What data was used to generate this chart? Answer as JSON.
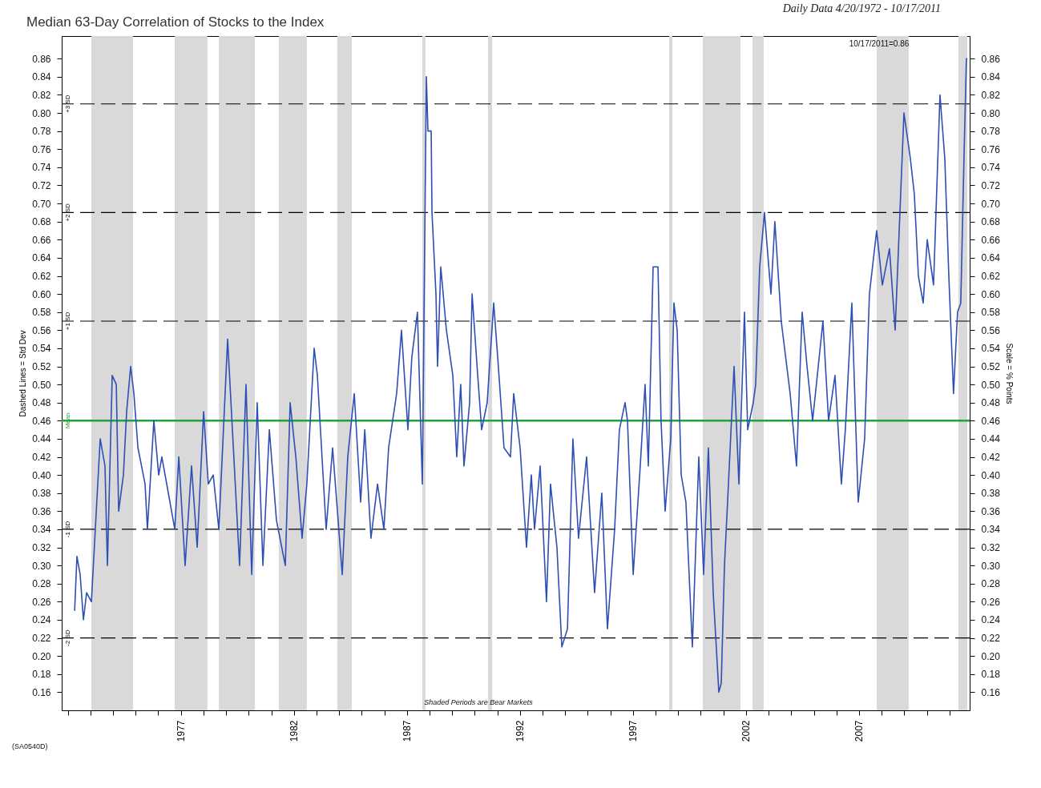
{
  "chart_data": {
    "type": "line",
    "title": "Median 63-Day Correlation of Stocks to the Index",
    "subtitle": "Daily Data 4/20/1972 - 10/17/2011",
    "ylabel": "Dashed Lines = Std Dev",
    "y2label": "Scale = % Points",
    "annotations": [
      "10/17/2011=0.86",
      "Shaded Periods are Bear Markets",
      "(SA0540D)"
    ],
    "x": [
      "1972-04-20",
      "1972-05-27",
      "1972-07-18",
      "1972-09-09",
      "1972-10-30",
      "1973-01-16",
      "1973-03-20",
      "1973-06-07",
      "1973-08-23",
      "1973-10-02",
      "1973-12-18",
      "1974-02-22",
      "1974-04-01",
      "1974-06-17",
      "1974-08-08",
      "1974-10-12",
      "1974-12-03",
      "1975-02-07",
      "1975-06-02",
      "1975-07-10",
      "1975-10-22",
      "1976-01-08",
      "1976-02-28",
      "1976-06-12",
      "1976-09-24",
      "1976-11-28",
      "1977-03-10",
      "1977-06-22",
      "1977-09-21",
      "1978-01-03",
      "1978-03-20",
      "1978-06-07",
      "1978-09-06",
      "1979-01-26",
      "1979-04-13",
      "1979-08-07",
      "1979-11-19",
      "1980-02-19",
      "1980-05-18",
      "1980-08-18",
      "1980-11-30",
      "1981-03-25",
      "1981-08-15",
      "1981-11-01",
      "1982-02-01",
      "1982-05-13",
      "1982-07-29",
      "1982-11-24",
      "1983-01-15",
      "1983-06-06",
      "1983-09-18",
      "1984-02-21",
      "1984-05-20",
      "1984-09-02",
      "1984-12-14",
      "1985-02-19",
      "1985-05-30",
      "1985-09-13",
      "1985-12-25",
      "1986-03-11",
      "1986-07-19",
      "1986-10-05",
      "1987-01-17",
      "1987-03-21",
      "1987-06-20",
      "1987-09-07",
      "1987-11-11",
      "1987-12-07",
      "1988-01-28",
      "1988-02-10",
      "1988-04-14",
      "1988-05-10",
      "1988-07-01",
      "1988-09-30",
      "1989-01-12",
      "1989-03-16",
      "1989-05-19",
      "1989-07-11",
      "1989-10-10",
      "1989-11-19",
      "1990-02-18",
      "1990-04-22",
      "1990-07-21",
      "1990-11-03",
      "1991-01-07",
      "1991-04-19",
      "1991-08-01",
      "1991-09-22",
      "1992-01-04",
      "1992-04-16",
      "1992-07-03",
      "1992-08-24",
      "1992-11-23",
      "1993-03-05",
      "1993-05-09",
      "1993-08-21",
      "1993-11-08",
      "1994-02-07",
      "1994-05-06",
      "1994-08-05",
      "1994-12-13",
      "1995-04-21",
      "1995-08-16",
      "1995-11-15",
      "1996-03-10",
      "1996-05-26",
      "1996-08-26",
      "1996-10-04",
      "1997-01-04",
      "1997-04-28",
      "1997-07-15",
      "1997-09-06",
      "1997-11-22",
      "1998-02-09",
      "1998-03-30",
      "1998-06-04",
      "1998-09-03",
      "1998-10-24",
      "1998-12-16",
      "1999-02-19",
      "1999-05-06",
      "1999-08-18",
      "1999-11-30",
      "2000-02-16",
      "2000-05-03",
      "2000-07-20",
      "2000-10-19",
      "2000-11-27",
      "2001-01-18",
      "2001-03-09",
      "2001-06-22",
      "2001-09-08",
      "2001-12-07",
      "2002-01-28",
      "2002-04-28",
      "2002-06-06",
      "2002-08-10",
      "2002-10-26",
      "2003-02-08",
      "2003-04-12",
      "2003-07-24",
      "2003-12-15",
      "2004-03-27",
      "2004-06-26",
      "2004-09-13",
      "2004-12-12",
      "2005-05-28",
      "2005-08-27",
      "2005-12-09",
      "2006-03-22",
      "2006-05-25",
      "2006-09-07",
      "2006-12-19",
      "2007-04-02",
      "2007-06-18",
      "2007-10-13",
      "2008-01-13",
      "2008-05-07",
      "2008-08-07",
      "2008-12-27",
      "2009-04-09",
      "2009-06-13",
      "2009-08-17",
      "2009-11-03",
      "2010-01-07",
      "2010-04-19",
      "2010-08-01",
      "2010-10-18",
      "2010-12-22",
      "2011-03-08",
      "2011-05-12",
      "2011-07-03",
      "2011-08-24",
      "2011-10-02",
      "2011-10-17"
    ],
    "series": [
      {
        "color": "#2e4fb5",
        "values": [
          0.25,
          0.31,
          0.29,
          0.24,
          0.27,
          0.26,
          0.34,
          0.44,
          0.41,
          0.3,
          0.51,
          0.5,
          0.36,
          0.4,
          0.47,
          0.52,
          0.49,
          0.43,
          0.39,
          0.34,
          0.46,
          0.4,
          0.42,
          0.38,
          0.34,
          0.42,
          0.3,
          0.41,
          0.32,
          0.47,
          0.39,
          0.4,
          0.34,
          0.55,
          0.45,
          0.3,
          0.5,
          0.29,
          0.48,
          0.3,
          0.45,
          0.35,
          0.3,
          0.48,
          0.42,
          0.33,
          0.39,
          0.54,
          0.51,
          0.34,
          0.43,
          0.29,
          0.42,
          0.49,
          0.37,
          0.45,
          0.33,
          0.39,
          0.34,
          0.43,
          0.49,
          0.56,
          0.45,
          0.53,
          0.58,
          0.39,
          0.84,
          0.78,
          0.78,
          0.69,
          0.6,
          0.52,
          0.63,
          0.56,
          0.51,
          0.42,
          0.5,
          0.41,
          0.48,
          0.6,
          0.51,
          0.45,
          0.48,
          0.59,
          0.53,
          0.43,
          0.42,
          0.49,
          0.43,
          0.32,
          0.4,
          0.34,
          0.41,
          0.26,
          0.39,
          0.32,
          0.21,
          0.23,
          0.44,
          0.33,
          0.42,
          0.27,
          0.38,
          0.23,
          0.34,
          0.45,
          0.48,
          0.46,
          0.29,
          0.41,
          0.5,
          0.41,
          0.63,
          0.63,
          0.46,
          0.36,
          0.44,
          0.59,
          0.56,
          0.4,
          0.37,
          0.21,
          0.42,
          0.29,
          0.43,
          0.27,
          0.16,
          0.17,
          0.3,
          0.37,
          0.52,
          0.39,
          0.58,
          0.45,
          0.48,
          0.5,
          0.63,
          0.69,
          0.6,
          0.68,
          0.57,
          0.49,
          0.41,
          0.58,
          0.52,
          0.46,
          0.57,
          0.46,
          0.51,
          0.39,
          0.45,
          0.59,
          0.37,
          0.44,
          0.6,
          0.67,
          0.61,
          0.65,
          0.56,
          0.8,
          0.75,
          0.71,
          0.62,
          0.59,
          0.66,
          0.61,
          0.82,
          0.75,
          0.62,
          0.49,
          0.58,
          0.59,
          0.75,
          0.86,
          0.86
        ]
      }
    ],
    "xlim": [
      "1971-09-24",
      "2011-11-24"
    ],
    "xticks": [
      {
        "value": "1972-01-01",
        "label": null
      },
      {
        "value": "1973-01-01",
        "label": null
      },
      {
        "value": "1974-01-01",
        "label": null
      },
      {
        "value": "1975-01-01",
        "label": null
      },
      {
        "value": "1976-01-01",
        "label": null
      },
      {
        "value": "1977-01-01",
        "label": "1977"
      },
      {
        "value": "1978-01-01",
        "label": null
      },
      {
        "value": "1979-01-01",
        "label": null
      },
      {
        "value": "1980-01-01",
        "label": null
      },
      {
        "value": "1981-01-01",
        "label": null
      },
      {
        "value": "1982-01-01",
        "label": "1982"
      },
      {
        "value": "1983-01-01",
        "label": null
      },
      {
        "value": "1984-01-01",
        "label": null
      },
      {
        "value": "1985-01-01",
        "label": null
      },
      {
        "value": "1986-01-01",
        "label": null
      },
      {
        "value": "1987-01-01",
        "label": "1987"
      },
      {
        "value": "1988-01-01",
        "label": null
      },
      {
        "value": "1989-01-01",
        "label": null
      },
      {
        "value": "1990-01-01",
        "label": null
      },
      {
        "value": "1991-01-01",
        "label": null
      },
      {
        "value": "1992-01-01",
        "label": "1992"
      },
      {
        "value": "1993-01-01",
        "label": null
      },
      {
        "value": "1994-01-01",
        "label": null
      },
      {
        "value": "1995-01-01",
        "label": null
      },
      {
        "value": "1996-01-01",
        "label": null
      },
      {
        "value": "1997-01-01",
        "label": "1997"
      },
      {
        "value": "1998-01-01",
        "label": null
      },
      {
        "value": "1999-01-01",
        "label": null
      },
      {
        "value": "2000-01-01",
        "label": null
      },
      {
        "value": "2001-01-01",
        "label": null
      },
      {
        "value": "2002-01-01",
        "label": "2002"
      },
      {
        "value": "2003-01-01",
        "label": null
      },
      {
        "value": "2004-01-01",
        "label": null
      },
      {
        "value": "2005-01-01",
        "label": null
      },
      {
        "value": "2006-01-01",
        "label": null
      },
      {
        "value": "2007-01-01",
        "label": "2007"
      },
      {
        "value": "2008-01-01",
        "label": null
      },
      {
        "value": "2009-01-01",
        "label": null
      },
      {
        "value": "2010-01-01",
        "label": null
      },
      {
        "value": "2011-01-01",
        "label": null
      }
    ],
    "ylim": [
      0.14,
      0.885
    ],
    "yticks": [
      0.16,
      0.18,
      {
        "value": 0.2,
        "label": "0.20"
      },
      0.22,
      0.24,
      0.26,
      0.28,
      {
        "value": 0.3,
        "label": "0.30"
      },
      0.32,
      0.34,
      0.36,
      0.38,
      {
        "value": 0.4,
        "label": "0.40"
      },
      0.42,
      0.44,
      0.46,
      0.48,
      {
        "value": 0.5,
        "label": "0.50"
      },
      0.52,
      0.54,
      0.56,
      0.58,
      {
        "value": 0.6,
        "label": "0.60"
      },
      0.62,
      0.64,
      0.66,
      0.68,
      {
        "value": 0.7,
        "label": "0.70"
      },
      0.72,
      0.74,
      0.76,
      0.78,
      {
        "value": 0.8,
        "label": "0.80"
      },
      0.82,
      0.84,
      0.86
    ],
    "y2lim": [
      0.14,
      0.885
    ],
    "y2ticks": [
      0.16,
      0.18,
      {
        "value": 0.2,
        "label": "0.20"
      },
      0.22,
      0.24,
      0.26,
      0.28,
      {
        "value": 0.3,
        "label": "0.30"
      },
      0.32,
      0.34,
      0.36,
      0.38,
      {
        "value": 0.4,
        "label": "0.40"
      },
      0.42,
      0.44,
      0.46,
      0.48,
      {
        "value": 0.5,
        "label": "0.50"
      },
      0.52,
      0.54,
      0.56,
      0.58,
      {
        "value": 0.6,
        "label": "0.60"
      },
      0.62,
      0.64,
      0.66,
      0.68,
      {
        "value": 0.7,
        "label": "0.70"
      },
      0.72,
      0.74,
      0.76,
      0.78,
      {
        "value": 0.8,
        "label": "0.80"
      },
      0.82,
      0.84,
      0.86
    ],
    "ref_lines": [
      {
        "axis": "y",
        "value": 0.81,
        "label": "+3 SD",
        "color": "#000000",
        "line_style": "dashed"
      },
      {
        "axis": "y",
        "value": 0.69,
        "label": "+2 SD",
        "color": "#000000",
        "line_style": "dashed"
      },
      {
        "axis": "y",
        "value": 0.57,
        "label": "+1 SD",
        "color": "#000000",
        "line_style": "dashed"
      },
      {
        "axis": "y",
        "value": 0.46,
        "label": "Mean",
        "color": "#22a33a",
        "line_style": "solid"
      },
      {
        "axis": "y",
        "value": 0.34,
        "label": "-1 SD",
        "color": "#000000",
        "line_style": "dashed"
      },
      {
        "axis": "y",
        "value": 0.22,
        "label": "-2 SD",
        "color": "#000000",
        "line_style": "dashed"
      }
    ],
    "bands": [
      {
        "axis": "x",
        "from": "1973-01-16",
        "to": "1974-11-20",
        "color": "#d9d9d9"
      },
      {
        "axis": "x",
        "from": "1976-09-24",
        "to": "1978-03-06",
        "color": "#d9d9d9"
      },
      {
        "axis": "x",
        "from": "1978-09-06",
        "to": "1980-04-10",
        "color": "#d9d9d9"
      },
      {
        "axis": "x",
        "from": "1981-05-01",
        "to": "1982-07-29",
        "color": "#d9d9d9"
      },
      {
        "axis": "x",
        "from": "1983-12-03",
        "to": "1984-07-25",
        "color": "#d9d9d9"
      },
      {
        "axis": "x",
        "from": "1987-09-07",
        "to": "1987-10-28",
        "color": "#d9d9d9"
      },
      {
        "axis": "x",
        "from": "1990-08-03",
        "to": "1990-10-08",
        "color": "#d9d9d9"
      },
      {
        "axis": "x",
        "from": "1998-08-07",
        "to": "1998-09-29",
        "color": "#d9d9d9"
      },
      {
        "axis": "x",
        "from": "2000-02-03",
        "to": "2001-10-03",
        "color": "#d9d9d9"
      },
      {
        "axis": "x",
        "from": "2002-04-15",
        "to": "2002-10-13",
        "color": "#d9d9d9"
      },
      {
        "axis": "x",
        "from": "2007-10-13",
        "to": "2009-03-13",
        "color": "#d9d9d9"
      },
      {
        "axis": "x",
        "from": "2011-05-25",
        "to": "2011-10-17",
        "color": "#d9d9d9"
      }
    ]
  }
}
